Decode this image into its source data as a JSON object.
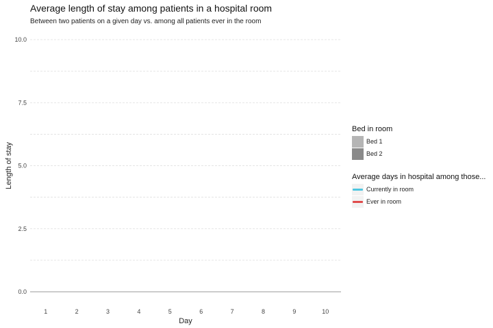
{
  "chart_data": {
    "type": "line",
    "title": "Average length of stay among patients in a hospital room",
    "subtitle": "Between two patients on a given day vs. among all patients ever in the room",
    "xlabel": "Day",
    "ylabel": "Length of stay",
    "x": [
      1,
      2,
      3,
      4,
      5,
      6,
      7,
      8,
      9,
      10
    ],
    "x_tick_labels": [
      "1",
      "2",
      "3",
      "4",
      "5",
      "6",
      "7",
      "8",
      "9",
      "10"
    ],
    "y_ticks": [
      0.0,
      2.5,
      5.0,
      7.5,
      10.0
    ],
    "y_tick_labels": [
      "0.0",
      "2.5",
      "5.0",
      "7.5",
      "10.0"
    ],
    "ylim": [
      0,
      10
    ],
    "xlim": [
      0.5,
      10.5
    ],
    "series": [],
    "legends": [
      {
        "title": "Bed in room",
        "kind": "fill",
        "entries": [
          {
            "label": "Bed 1",
            "color": "#b5b5b5"
          },
          {
            "label": "Bed 2",
            "color": "#8a8a8a"
          }
        ]
      },
      {
        "title": "Average days in hospital among those...",
        "kind": "line",
        "entries": [
          {
            "label": "Currently in room",
            "color": "#4ec6e0"
          },
          {
            "label": "Ever in room",
            "color": "#e04a4a"
          }
        ]
      }
    ]
  }
}
